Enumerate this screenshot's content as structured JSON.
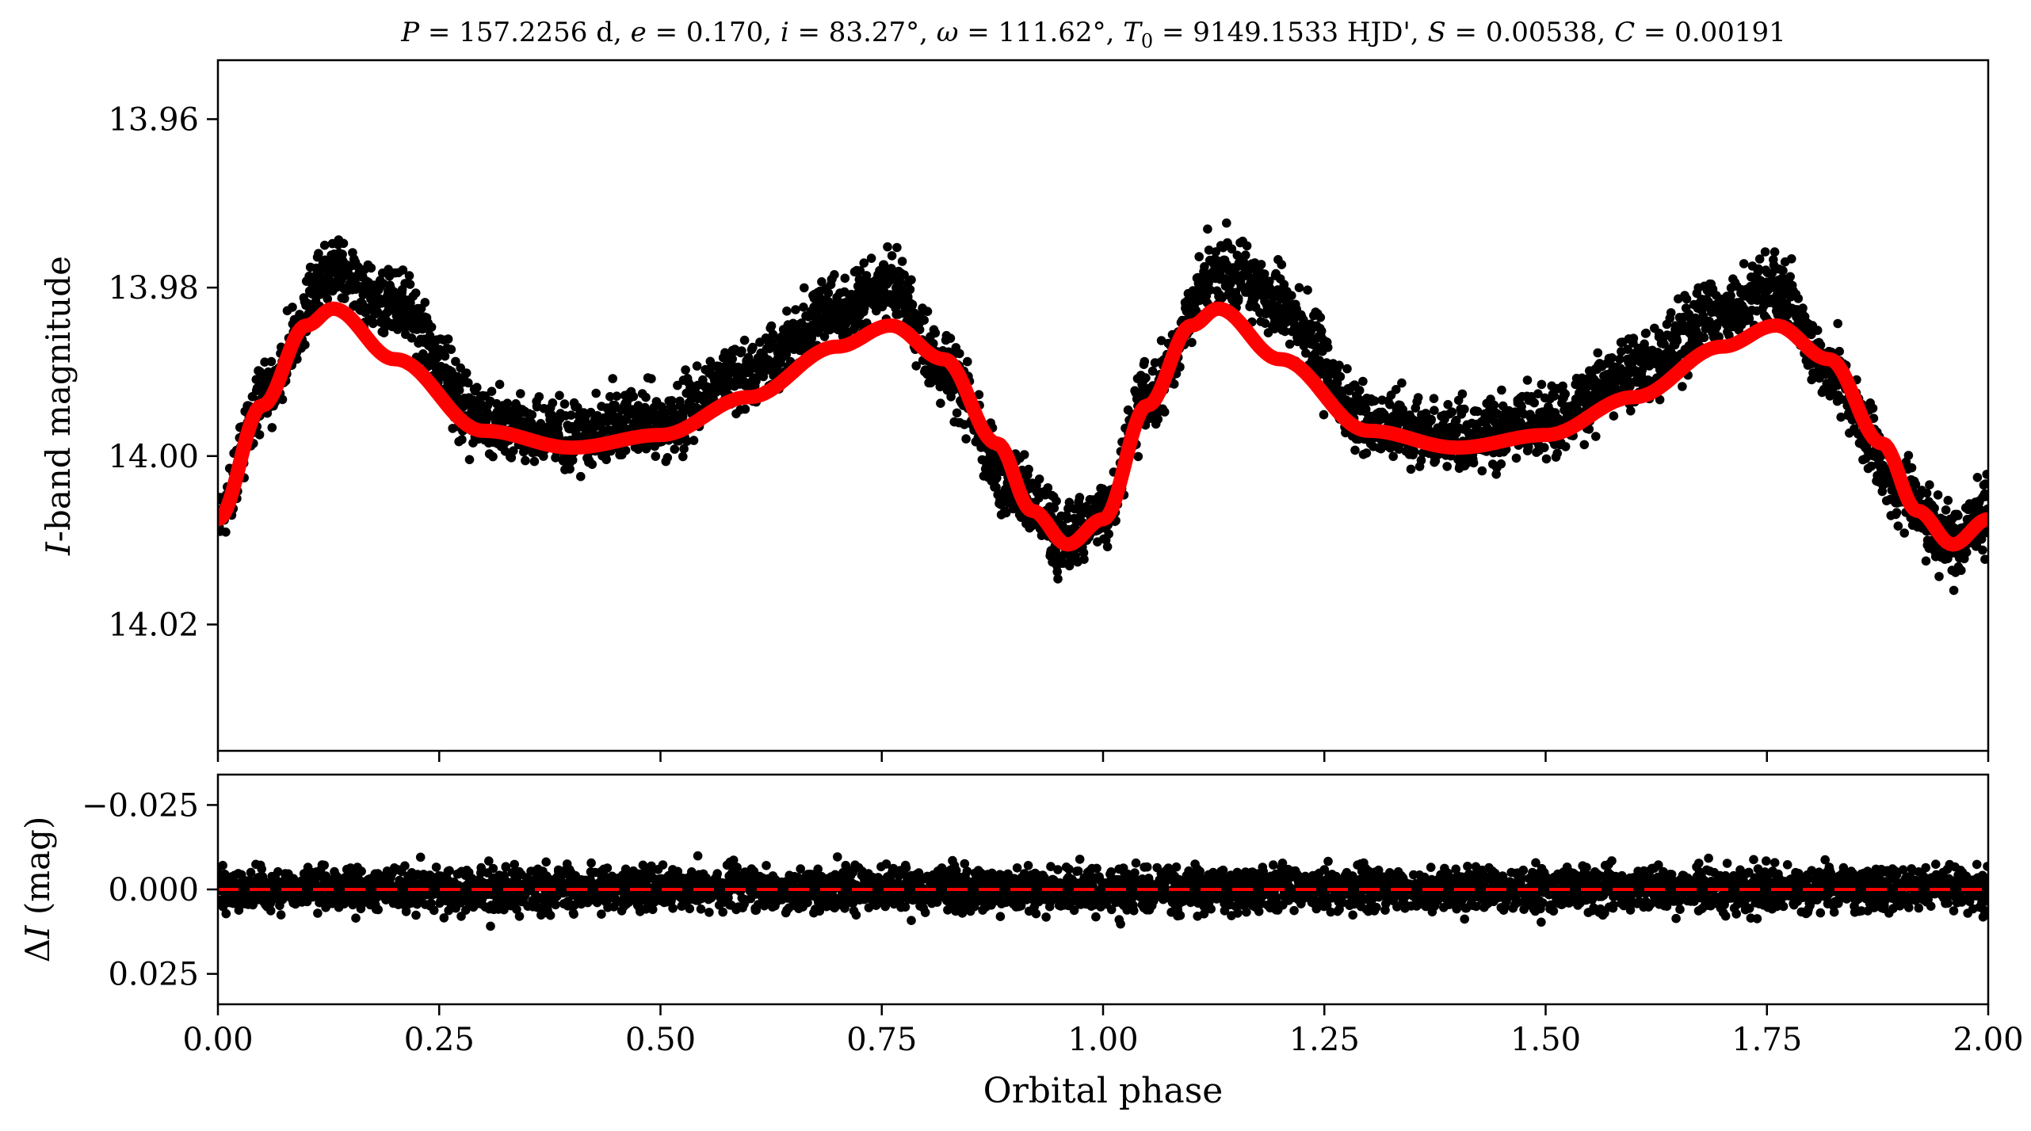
{
  "chart_data": [
    {
      "type": "scatter",
      "panel": "light-curve",
      "title": "P = 157.2256 d, e = 0.170, i = 83.27°, ω = 111.62°, T0 = 9149.1533 HJD', S = 0.00538, C = 0.00191",
      "title_parts": {
        "P_sym": "P",
        "P_val": " = 157.2256 d, ",
        "e_sym": "e",
        "e_val": " = 0.170, ",
        "i_sym": "i",
        "i_val": " = 83.27°, ",
        "w_sym": "ω",
        "w_val": " = 111.62°, ",
        "T_sym": "T",
        "T_sub": "0",
        "T_val": " = 9149.1533 HJD', ",
        "S_sym": "S",
        "S_val": " = 0.00538, ",
        "C_sym": "C",
        "C_val": " = 0.00191"
      },
      "xlabel": "",
      "ylabel": "I-band magnitude",
      "ylabel_parts": {
        "sym": "I",
        "rest": "-band magnitude"
      },
      "xlim": [
        0.0,
        2.0
      ],
      "ylim": [
        14.035,
        13.953
      ],
      "y_inverted": true,
      "yticks": [
        "13.96",
        "13.98",
        "14.00",
        "14.02"
      ],
      "ytick_values": [
        13.96,
        13.98,
        14.0,
        14.02
      ],
      "xtick_values": [
        0.0,
        0.25,
        0.5,
        0.75,
        1.0,
        1.25,
        1.5,
        1.75,
        2.0
      ],
      "grid": false,
      "series": [
        {
          "kind": "observations",
          "color": "#000000",
          "x": [
            0.0,
            0.05,
            0.13,
            0.2,
            0.3,
            0.4,
            0.5,
            0.6,
            0.7,
            0.76,
            0.82,
            0.9,
            0.96,
            1.0,
            1.05,
            1.13,
            1.2,
            1.3,
            1.4,
            1.5,
            1.6,
            1.7,
            1.76,
            1.82,
            1.9,
            1.96,
            2.0
          ],
          "y": [
            14.007,
            13.993,
            13.978,
            13.982,
            13.996,
            13.998,
            13.996,
            13.99,
            13.983,
            13.98,
            13.99,
            14.004,
            14.01,
            14.007,
            13.993,
            13.978,
            13.982,
            13.996,
            13.998,
            13.996,
            13.99,
            13.983,
            13.98,
            13.99,
            14.004,
            14.01,
            14.007
          ]
        },
        {
          "kind": "model",
          "color": "#ff0000",
          "x": [
            0.0,
            0.05,
            0.1,
            0.13,
            0.2,
            0.3,
            0.4,
            0.5,
            0.6,
            0.7,
            0.76,
            0.82,
            0.88,
            0.92,
            0.96,
            1.0,
            1.05,
            1.1,
            1.13,
            1.2,
            1.3,
            1.4,
            1.5,
            1.6,
            1.7,
            1.76,
            1.82,
            1.88,
            1.92,
            1.96,
            2.0
          ],
          "y": [
            14.0075,
            13.994,
            13.9845,
            13.9825,
            13.9885,
            13.997,
            13.999,
            13.9975,
            13.993,
            13.987,
            13.9845,
            13.9885,
            13.9985,
            14.0065,
            14.0105,
            14.0075,
            13.994,
            13.9845,
            13.9825,
            13.9885,
            13.997,
            13.999,
            13.9975,
            13.993,
            13.987,
            13.9845,
            13.9885,
            13.9985,
            14.0065,
            14.0105,
            14.0075
          ]
        }
      ]
    },
    {
      "type": "scatter",
      "panel": "residuals",
      "xlabel": "Orbital phase",
      "ylabel": "ΔI (mag)",
      "ylabel_parts": {
        "delta": "Δ",
        "sym": "I",
        "rest": " (mag)"
      },
      "xlim": [
        0.0,
        2.0
      ],
      "ylim": [
        0.034,
        -0.034
      ],
      "y_inverted": true,
      "yticks": [
        "−0.025",
        "0.000",
        "0.025"
      ],
      "ytick_values": [
        -0.025,
        0.0,
        0.025
      ],
      "xticks": [
        "0.00",
        "0.25",
        "0.50",
        "0.75",
        "1.00",
        "1.25",
        "1.50",
        "1.75",
        "2.00"
      ],
      "xtick_values": [
        0.0,
        0.25,
        0.5,
        0.75,
        1.0,
        1.25,
        1.5,
        1.75,
        2.0
      ],
      "grid": false,
      "zero_line": {
        "y": 0.0,
        "style": "dashed",
        "color": "#ff0000"
      },
      "series": [
        {
          "kind": "residuals",
          "color": "#000000",
          "x": [
            0.0,
            0.25,
            0.5,
            0.75,
            1.0,
            1.25,
            1.5,
            1.75,
            2.0
          ],
          "y": [
            0.0,
            0.0,
            0.0,
            0.0,
            0.0,
            0.0,
            0.0,
            0.0,
            0.0
          ],
          "scatter_range": [
            -0.02,
            0.019
          ]
        }
      ]
    }
  ]
}
